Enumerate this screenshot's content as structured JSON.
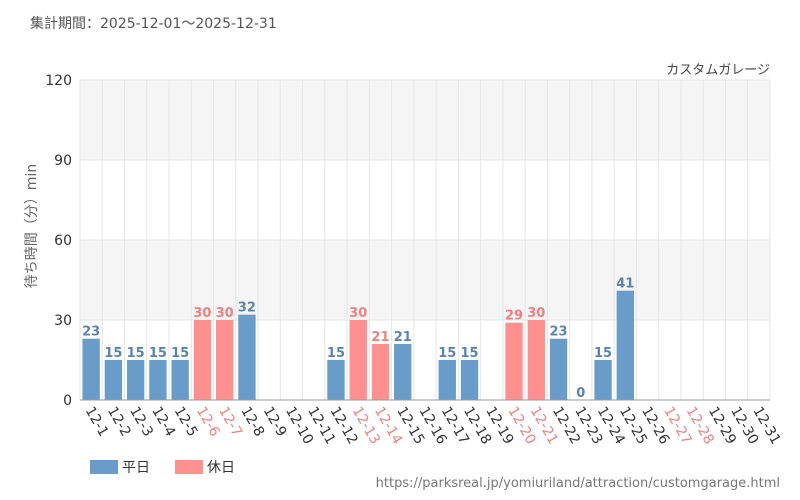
{
  "header": {
    "period_label": "集計期間：2025-12-01～2025-12-31",
    "attraction": "カスタムガレージ"
  },
  "footer": {
    "url": "https://parksreal.jp/yomiuriland/attraction/customgarage.html"
  },
  "colors": {
    "weekday": "#6a9cc9",
    "holiday": "#ff9090",
    "weekday_text": "#5b84ad",
    "holiday_text": "#ef8080",
    "band": "#f5f5f5",
    "grid": "#e6e6e6"
  },
  "chart_data": {
    "type": "bar",
    "title": "",
    "xlabel": "",
    "ylabel": "待ち時間（分）min",
    "ylim": [
      0,
      120
    ],
    "yticks": [
      "0",
      "30",
      "60",
      "90",
      "120"
    ],
    "categories": [
      "12-1",
      "12-2",
      "12-3",
      "12-4",
      "12-5",
      "12-6",
      "12-7",
      "12-8",
      "12-9",
      "12-10",
      "12-11",
      "12-12",
      "12-13",
      "12-14",
      "12-15",
      "12-16",
      "12-17",
      "12-18",
      "12-19",
      "12-20",
      "12-21",
      "12-22",
      "12-23",
      "12-24",
      "12-25",
      "12-26",
      "12-27",
      "12-28",
      "12-29",
      "12-30",
      "12-31"
    ],
    "values": [
      23,
      15,
      15,
      15,
      15,
      30,
      30,
      32,
      null,
      null,
      null,
      15,
      30,
      21,
      21,
      null,
      15,
      15,
      null,
      29,
      30,
      23,
      0,
      15,
      41,
      null,
      null,
      null,
      null,
      null,
      null
    ],
    "day_type": [
      "weekday",
      "weekday",
      "weekday",
      "weekday",
      "weekday",
      "holiday",
      "holiday",
      "weekday",
      "weekday",
      "weekday",
      "weekday",
      "weekday",
      "holiday",
      "holiday",
      "weekday",
      "weekday",
      "weekday",
      "weekday",
      "weekday",
      "holiday",
      "holiday",
      "weekday",
      "weekday",
      "weekday",
      "weekday",
      "weekday",
      "holiday",
      "holiday",
      "weekday",
      "weekday",
      "weekday"
    ],
    "legend": [
      {
        "key": "weekday",
        "label": "平日"
      },
      {
        "key": "holiday",
        "label": "休日"
      }
    ],
    "legend_position": "bottom-left"
  }
}
